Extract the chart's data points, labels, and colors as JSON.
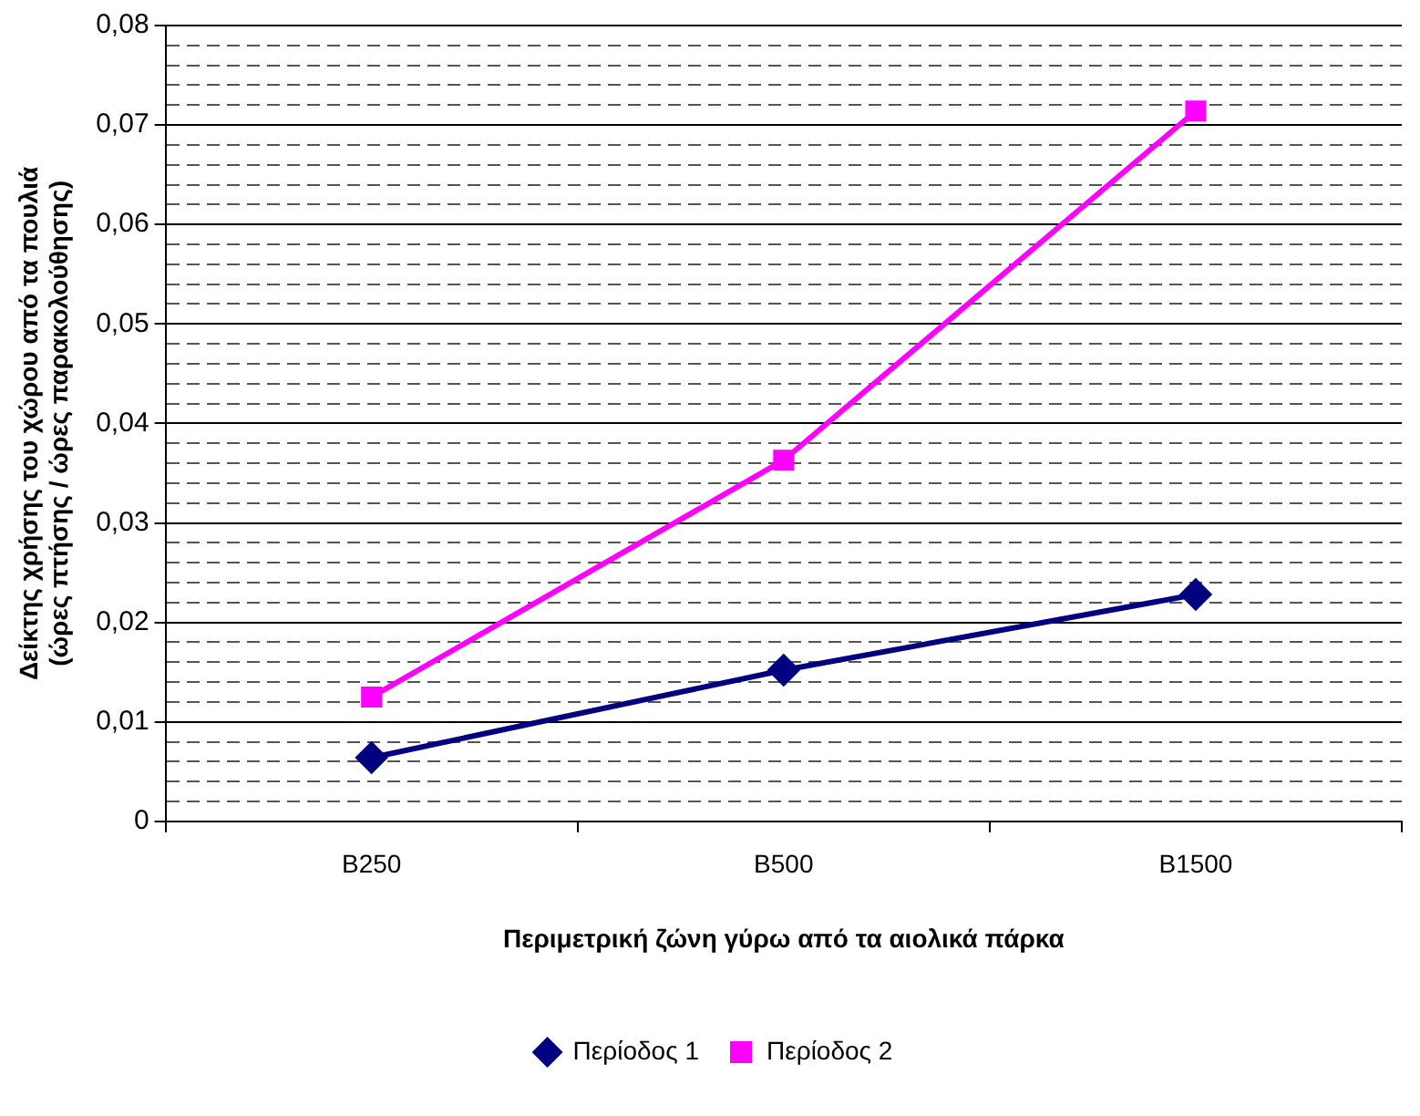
{
  "chart_data": {
    "type": "line",
    "xlabel": "Περιμετρική ζώνη γύρω από τα αιολικά πάρκα",
    "ylabel": "Δείκτης χρήσης του χώρου από τα πουλιά\n(ώρες πτήσης / ώρες παρακολούθησης)",
    "categories": [
      "B250",
      "B500",
      "B1500"
    ],
    "series": [
      {
        "name": "Περίοδος 1",
        "color": "#000080",
        "marker": "diamond",
        "values": [
          0.0064,
          0.0152,
          0.0228
        ]
      },
      {
        "name": "Περίοδος 2",
        "color": "#ff00ff",
        "marker": "square",
        "values": [
          0.0125,
          0.0363,
          0.0714
        ]
      }
    ],
    "ylim": [
      0,
      0.08
    ],
    "yticks": [
      0,
      {
        "value": 0.002,
        "label": null
      },
      {
        "value": 0.004,
        "label": null
      },
      {
        "value": 0.006,
        "label": null
      },
      {
        "value": 0.008,
        "label": null
      },
      {
        "value": 0.01,
        "label": "0,01"
      },
      {
        "value": 0.012,
        "label": null
      },
      {
        "value": 0.014,
        "label": null
      },
      {
        "value": 0.016,
        "label": null
      },
      {
        "value": 0.018,
        "label": null
      },
      {
        "value": 0.02,
        "label": "0,02"
      },
      {
        "value": 0.022,
        "label": null
      },
      {
        "value": 0.024,
        "label": null
      },
      {
        "value": 0.026,
        "label": null
      },
      {
        "value": 0.028,
        "label": null
      },
      {
        "value": 0.03,
        "label": "0,03"
      },
      {
        "value": 0.032,
        "label": null
      },
      {
        "value": 0.034,
        "label": null
      },
      {
        "value": 0.036,
        "label": null
      },
      {
        "value": 0.038,
        "label": null
      },
      {
        "value": 0.04,
        "label": "0,04"
      },
      {
        "value": 0.042,
        "label": null
      },
      {
        "value": 0.044,
        "label": null
      },
      {
        "value": 0.046,
        "label": null
      },
      {
        "value": 0.048,
        "label": null
      },
      {
        "value": 0.05,
        "label": "0,05"
      },
      {
        "value": 0.052,
        "label": null
      },
      {
        "value": 0.054,
        "label": null
      },
      {
        "value": 0.056,
        "label": null
      },
      {
        "value": 0.058,
        "label": null
      },
      {
        "value": 0.06,
        "label": "0,06"
      },
      {
        "value": 0.062,
        "label": null
      },
      {
        "value": 0.064,
        "label": null
      },
      {
        "value": 0.066,
        "label": null
      },
      {
        "value": 0.068,
        "label": null
      },
      {
        "value": 0.07,
        "label": "0,07"
      },
      {
        "value": 0.072,
        "label": null
      },
      {
        "value": 0.074,
        "label": null
      },
      {
        "value": 0.076,
        "label": null
      },
      {
        "value": 0.078,
        "label": null
      },
      {
        "value": 0.08,
        "label": "0,08"
      }
    ],
    "grid": "y",
    "legend": "bottom",
    "line_style": "solid"
  }
}
